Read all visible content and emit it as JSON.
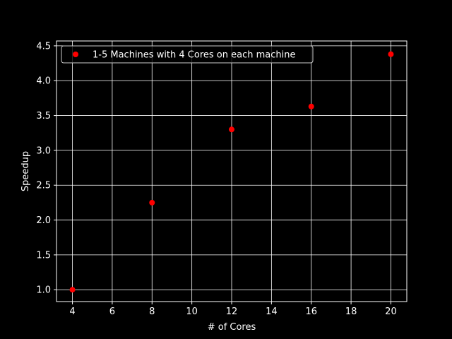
{
  "chart_data": {
    "type": "scatter",
    "title": "",
    "xlabel": "# of Cores",
    "ylabel": "Speedup",
    "xlim": [
      3.2,
      20.8
    ],
    "ylim": [
      0.83,
      4.57
    ],
    "x_ticks": [
      4,
      6,
      8,
      10,
      12,
      14,
      16,
      18,
      20
    ],
    "y_ticks": [
      1.0,
      1.5,
      2.0,
      2.5,
      3.0,
      3.5,
      4.0,
      4.5
    ],
    "x_tick_labels": [
      "4",
      "6",
      "8",
      "10",
      "12",
      "14",
      "16",
      "18",
      "20"
    ],
    "y_tick_labels": [
      "1.0",
      "1.5",
      "2.0",
      "2.5",
      "3.0",
      "3.5",
      "4.0",
      "4.5"
    ],
    "grid": true,
    "legend_position": "upper-left",
    "series": [
      {
        "name": "1-5 Machines with 4 Cores on each machine",
        "color": "#ff0000",
        "marker": "circle",
        "x": [
          4,
          8,
          12,
          16,
          20
        ],
        "y": [
          1.0,
          2.25,
          3.3,
          3.63,
          4.38
        ]
      }
    ]
  },
  "colors": {
    "background": "#000000",
    "axes": "#ffffff",
    "grid": "#ffffff",
    "text": "#ffffff"
  }
}
